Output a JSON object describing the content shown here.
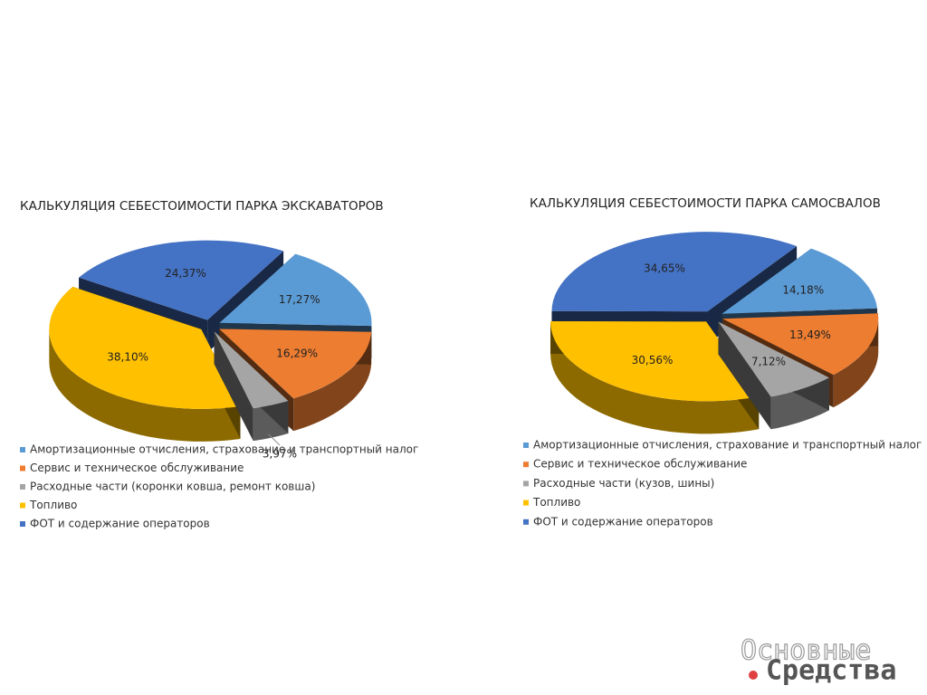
{
  "chart_data": [
    {
      "type": "pie",
      "title": "КАЛЬКУЛЯЦИЯ СЕБЕСТОИМОСТИ ПАРКА ЭКСКАВАТОРОВ",
      "categories": [
        "Амортизационные отчисления, страхование и транспортный налог",
        "Сервис и техническое обслуживание",
        "Расходные части (коронки ковша, ремонт ковша)",
        "Топливо",
        "ФОТ и содержание операторов"
      ],
      "values": [
        17.27,
        16.29,
        3.97,
        38.1,
        24.37
      ],
      "value_labels": [
        "17,27%",
        "16,29%",
        "3,97%",
        "38,10%",
        "24,37%"
      ],
      "colors": [
        "#5b9bd5",
        "#ed7d31",
        "#a5a5a5",
        "#ffc000",
        "#4472c4"
      ]
    },
    {
      "type": "pie",
      "title": "КАЛЬКУЛЯЦИЯ СЕБЕСТОИМОСТИ ПАРКА  САМОСВАЛОВ",
      "categories": [
        "Амортизационные отчисления, страхование и транспортный налог",
        "Сервис и техническое обслуживание",
        "Расходные части (кузов, шины)",
        "Топливо",
        "ФОТ и содержание операторов"
      ],
      "values": [
        14.18,
        13.49,
        7.12,
        30.56,
        34.65
      ],
      "value_labels": [
        "14,18%",
        "13,49%",
        "7,12%",
        "30,56%",
        "34,65%"
      ],
      "colors": [
        "#5b9bd5",
        "#ed7d31",
        "#a5a5a5",
        "#ffc000",
        "#4472c4"
      ]
    }
  ],
  "watermark": {
    "line1": "Основные",
    "line2": "Средства"
  }
}
